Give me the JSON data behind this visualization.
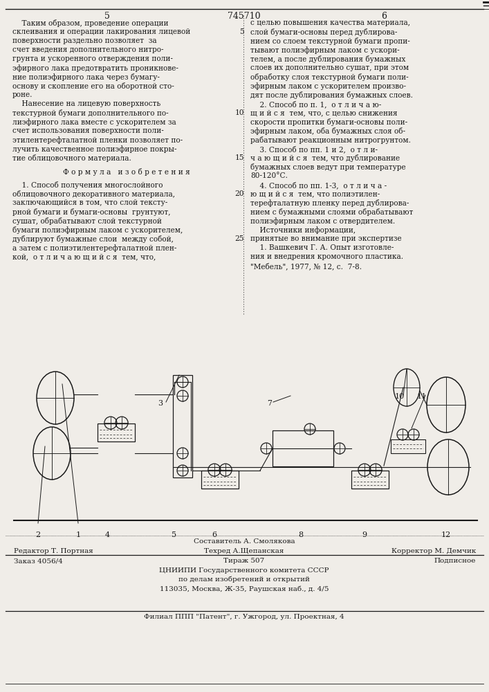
{
  "page_number_left": "5",
  "page_number_center": "745710",
  "page_number_right": "6",
  "left_col_lines": [
    "    Таким образом, проведение операции",
    "склеивания и операции лакирования лицевой",
    "поверхности раздельно позволяет  за",
    "счет введения дополнительного нитро-",
    "грунта и ускоренного отверждения поли-",
    "эфирного лака предотвратить проникнове-",
    "ние полиэфирного лака через бумагу-",
    "основу и скопление его на оборотной сто-",
    "роне.",
    "    Нанесение на лицевую поверхность",
    "текстурной бумаги дополнительного по-",
    "лиэфирного лака вместе с ускорителем за",
    "счет использования поверхности поли-",
    "этилентерефталатной пленки позволяет по-",
    "лучить качественное полиэфирное покры-",
    "тие облицовочного материала."
  ],
  "formula_header": "Ф о р м у л а   и з о б р е т е н и я",
  "left_col_lines2": [
    "    1. Способ получения многослойного",
    "облицовочного декоративного материала,",
    "заключающийся в том, что слой тексту-",
    "рной бумаги и бумаги-основы  грунтуют,",
    "сушат, обрабатывают слой текстурной",
    "бумаги полиэфирным лаком с ускорителем,",
    "дублируют бумажные слои  между собой,",
    "а затем с полиэтилентерефталатной плен-",
    "кой,  о т л и ч а ю щ и й с я  тем, что,"
  ],
  "right_col_lines": [
    "с целью повышения качества материала,",
    "слой бумаги-основы перед дублирова-",
    "нием со слоем текстурной бумаги пропи-",
    "тывают полиэфирным лаком с ускори-",
    "телем, а после дублирования бумажных",
    "слоев их дополнительно сушат, при этом",
    "обработку слоя текстурной бумаги поли-",
    "эфирным лаком с ускорителем произво-",
    "дят после дублирования бумажных слоев.",
    "    2. Способ по п. 1,  о т л и ч а ю-",
    "щ и й с я  тем, что, с целью снижения",
    "скорости пропитки бумаги-основы поли-",
    "эфирным лаком, оба бумажных слоя об-",
    "рабатывают реакционным нитрогрунтом.",
    "    3. Способ по пп. 1 и 2,  о т л и-",
    "ч а ю щ и й с я  тем, что дублирование",
    "бумажных слоев ведут при температуре",
    "80-120°С.",
    "    4. Способ по пп. 1-3,  о т л и ч а -",
    "ю щ и й с я  тем, что полиэтилен-",
    "терефталатную пленку перед дублирова-",
    "нием с бумажными слоями обрабатывают",
    "полиэфирным лаком с отвердителем.",
    "    Источники информации,",
    "принятые во внимание при экспертизе",
    "    1. Вашкевич Г. А. Опыт изготовле-",
    "ния и внедрения кромочного пластика.",
    "\"Мебель\", 1977, № 12, с.  7-8."
  ],
  "line_numbers_right": [
    5,
    10,
    15,
    20,
    25
  ],
  "line_numbers_right_pos": [
    1,
    10,
    15,
    19,
    24
  ],
  "footer_line1": "Составитель А. Смолякова",
  "footer_line2_left": "Редактор Т. Портная",
  "footer_line2_center": "Техред А.Щепанская",
  "footer_line2_right": "Корректор М. Демчик",
  "footer_line3_left": "Заказ 4056/4",
  "footer_line3_center": "Тираж 507",
  "footer_line3_right": "Подписное",
  "footer_line4": "ЦНИИПИ Государственного комитета СССР",
  "footer_line5": "по делам изобретений и открытий",
  "footer_line6": "113035, Москва, Ж-35, Раушская наб., д. 4/5",
  "footer_line7": "Филиал ППП \"Патент\", г. Ужгород, ул. Проектная, 4",
  "bg_color": "#f0ede8",
  "text_color": "#1a1a1a"
}
